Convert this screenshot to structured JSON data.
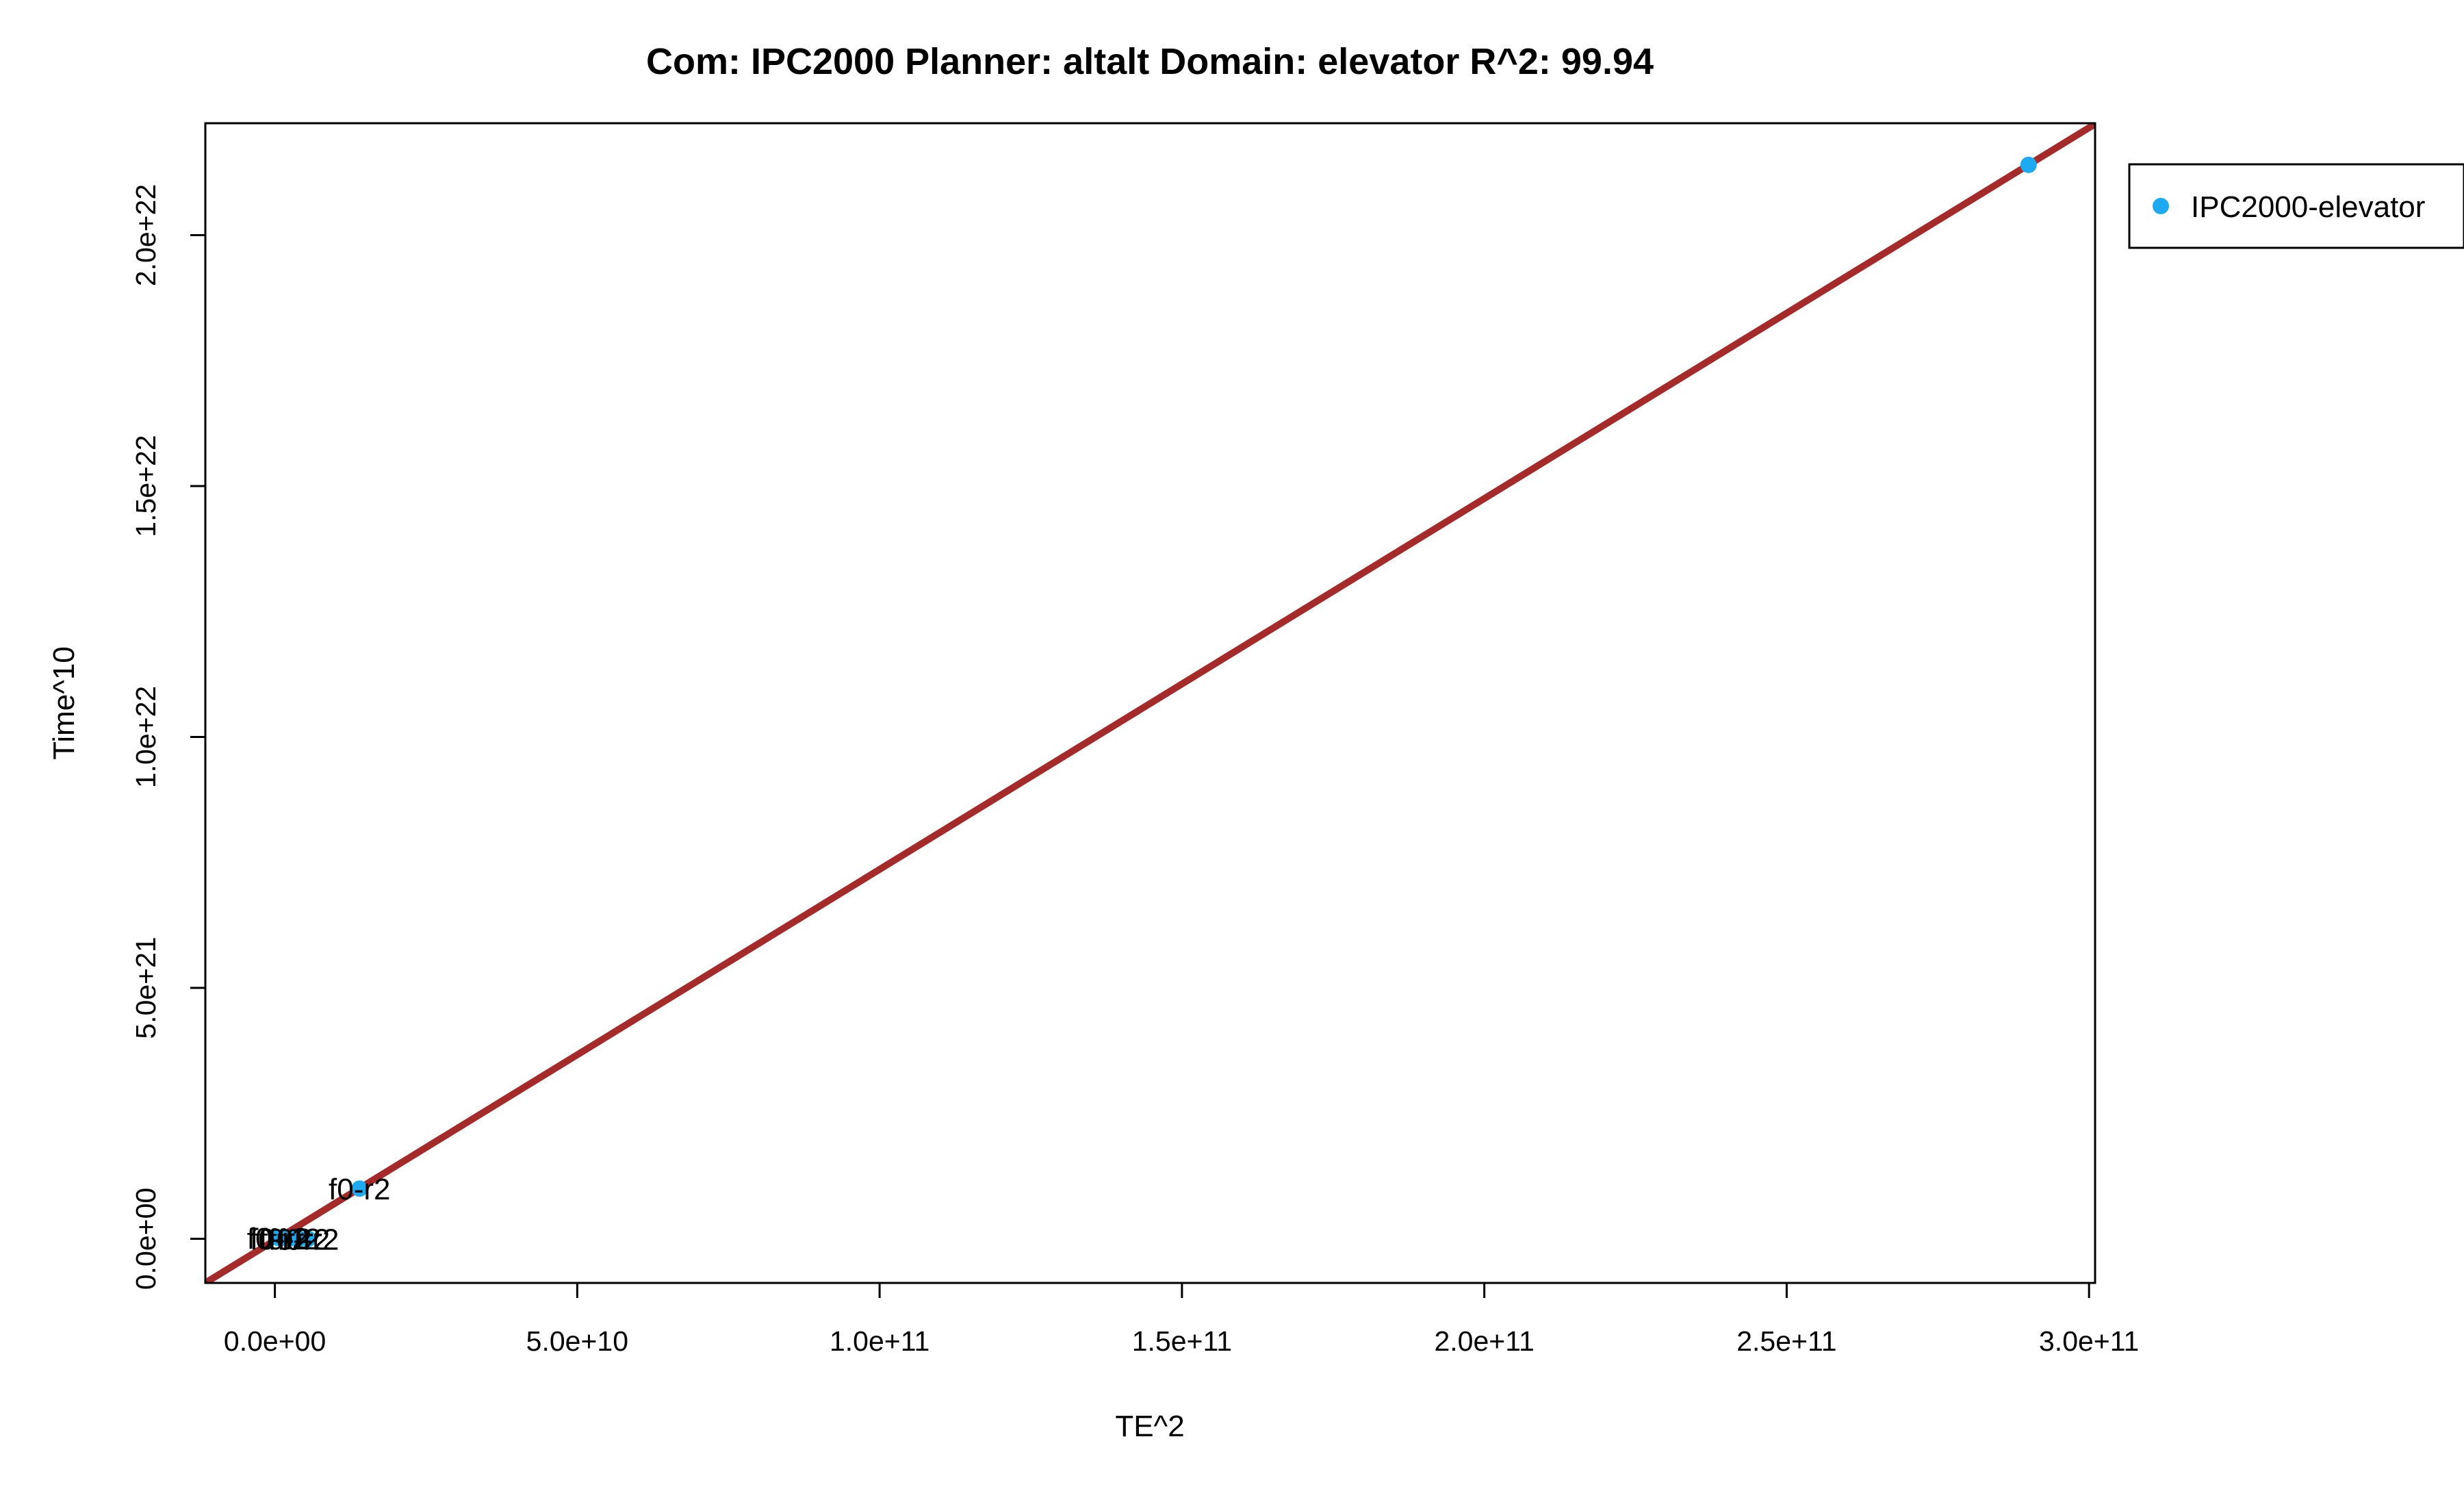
{
  "chart_data": {
    "type": "scatter",
    "title": "Com: IPC2000 Planner: altalt Domain: elevator R^2: 99.94",
    "xlabel": "TE^2",
    "ylabel": "Time^10",
    "xlim": [
      -11500000000,
      301000000000
    ],
    "ylim": [
      -8.8e+20,
      2.223e+22
    ],
    "x_ticks": [
      0,
      50000000000,
      100000000000,
      150000000000,
      200000000000,
      250000000000,
      300000000000
    ],
    "x_tick_labels": [
      "0.0e+00",
      "5.0e+10",
      "1.0e+11",
      "1.5e+11",
      "2.0e+11",
      "2.5e+11",
      "3.0e+11"
    ],
    "y_ticks": [
      0,
      5e+21,
      1e+22,
      1.5e+22,
      2e+22
    ],
    "y_tick_labels": [
      "0.0e+00",
      "5.0e+21",
      "1.0e+22",
      "1.5e+22",
      "2.0e+22"
    ],
    "series": [
      {
        "name": "IPC2000-elevator",
        "color": "#1eaaf1",
        "points": [
          {
            "x": 290000000000,
            "y": 2.14e+22,
            "label": ""
          },
          {
            "x": 14000000000,
            "y": 1e+21,
            "label": "f0-r2"
          },
          {
            "x": 500000000,
            "y": 2e+19,
            "label": "f0-r2"
          },
          {
            "x": 1000000000,
            "y": 1e+19,
            "label": "f0-r2"
          },
          {
            "x": 2500000000,
            "y": 5e+18,
            "label": "f0-r2"
          },
          {
            "x": 4000000000,
            "y": 1e+18,
            "label": "f0-r2"
          },
          {
            "x": 5500000000,
            "y": 0,
            "label": "f0-r2"
          }
        ]
      }
    ],
    "fit_line": {
      "intercept": -2.9e+19,
      "slope": 73900000000.0,
      "color": "#a52a2a"
    },
    "legend": {
      "position": "right-outside",
      "entries": [
        "IPC2000-elevator"
      ]
    },
    "grid": false
  }
}
